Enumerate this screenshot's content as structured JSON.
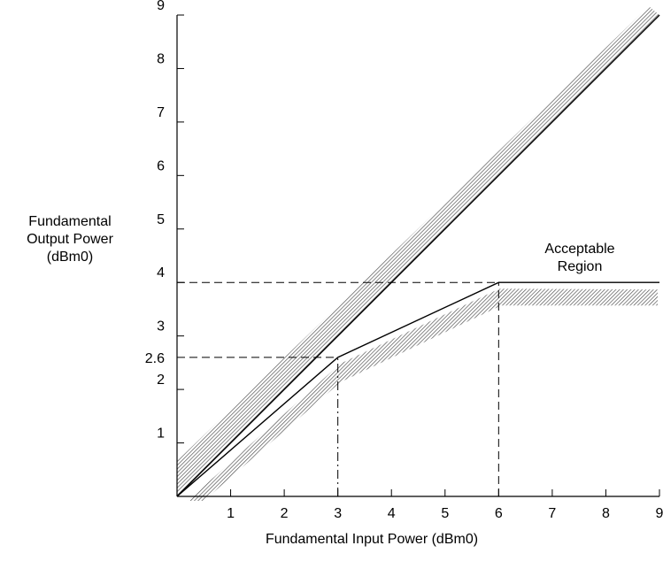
{
  "chart_data": {
    "type": "line",
    "title": "",
    "xlabel": "Fundamental Input Power (dBm0)",
    "ylabel": [
      "Fundamental",
      "Output Power",
      "(dBm0)"
    ],
    "xlim": [
      0,
      9
    ],
    "ylim": [
      0,
      9
    ],
    "xticks": [
      1,
      2,
      3,
      4,
      5,
      6,
      7,
      8,
      9
    ],
    "yticks": [
      1,
      2,
      3,
      4,
      5,
      6,
      7,
      8,
      9
    ],
    "extra_ytick": {
      "value": 2.6,
      "label": "2.6"
    },
    "grid": false,
    "series": [
      {
        "role": "upper-bound",
        "x": [
          0,
          9
        ],
        "y": [
          0,
          9
        ]
      },
      {
        "role": "lower-bound",
        "x": [
          0,
          3,
          6,
          9
        ],
        "y": [
          0,
          2.6,
          4,
          4
        ]
      }
    ],
    "reference_lines": [
      {
        "kind": "horizontal",
        "y": 4,
        "x_from": 0,
        "x_to": 6
      },
      {
        "kind": "horizontal",
        "y": 2.6,
        "x_from": 0,
        "x_to": 3
      },
      {
        "kind": "vertical",
        "x": 3,
        "y_from": 0,
        "y_to": 2.6
      },
      {
        "kind": "vertical",
        "x": 6,
        "y_from": 0,
        "y_to": 4
      }
    ],
    "annotation": [
      "Acceptable",
      "Region"
    ],
    "colors": {
      "line": "#000000",
      "hatch": "#666666"
    }
  }
}
